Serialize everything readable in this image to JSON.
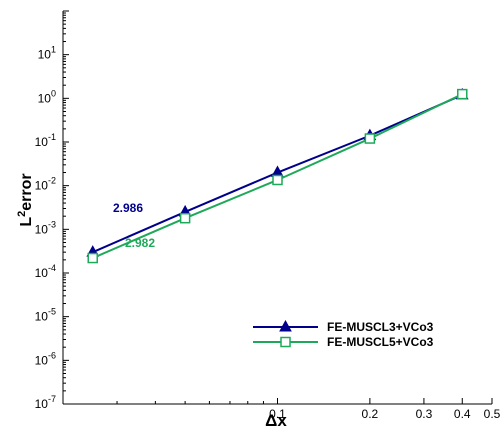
{
  "chart_data": {
    "type": "line",
    "x_scale": "log",
    "y_scale": "log",
    "xlabel": "Δx",
    "ylabel_base": "L",
    "ylabel_sup": "2",
    "ylabel_rest": "error",
    "xlim": [
      0.02,
      0.5
    ],
    "ylim": [
      1e-07,
      100
    ],
    "x_ticks": [
      {
        "value": 0.1,
        "label": "0.1"
      },
      {
        "value": 0.2,
        "label": "0.2"
      },
      {
        "value": 0.3,
        "label": "0.3"
      },
      {
        "value": 0.4,
        "label": "0.4"
      },
      {
        "value": 0.5,
        "label": "0.5"
      }
    ],
    "y_ticks": [
      {
        "value": 1e-07,
        "base": "10",
        "exp": "-7"
      },
      {
        "value": 1e-06,
        "base": "10",
        "exp": "-6"
      },
      {
        "value": 1e-05,
        "base": "10",
        "exp": "-5"
      },
      {
        "value": 0.0001,
        "base": "10",
        "exp": "-4"
      },
      {
        "value": 0.001,
        "base": "10",
        "exp": "-3"
      },
      {
        "value": 0.01,
        "base": "10",
        "exp": "-2"
      },
      {
        "value": 0.1,
        "base": "10",
        "exp": "-1"
      },
      {
        "value": 1,
        "base": "10",
        "exp": "0"
      },
      {
        "value": 10,
        "base": "10",
        "exp": "1"
      }
    ],
    "series": [
      {
        "name": "FE-MUSCL3+VCo3",
        "color": "#00008B",
        "marker": "filled-triangle",
        "x": [
          0.025,
          0.05,
          0.1,
          0.2,
          0.4
        ],
        "y": [
          0.0003,
          0.0025,
          0.02,
          0.14,
          1.2
        ]
      },
      {
        "name": "FE-MUSCL5+VCo3",
        "color": "#1EA95A",
        "marker": "open-square",
        "x": [
          0.025,
          0.05,
          0.1,
          0.2,
          0.4
        ],
        "y": [
          0.00022,
          0.0018,
          0.0135,
          0.12,
          1.25
        ]
      }
    ],
    "annotations": [
      {
        "text": "2.986",
        "color": "#00008B"
      },
      {
        "text": "2.982",
        "color": "#1EA95A"
      }
    ],
    "legend_position": "bottom-right",
    "grid": false
  }
}
